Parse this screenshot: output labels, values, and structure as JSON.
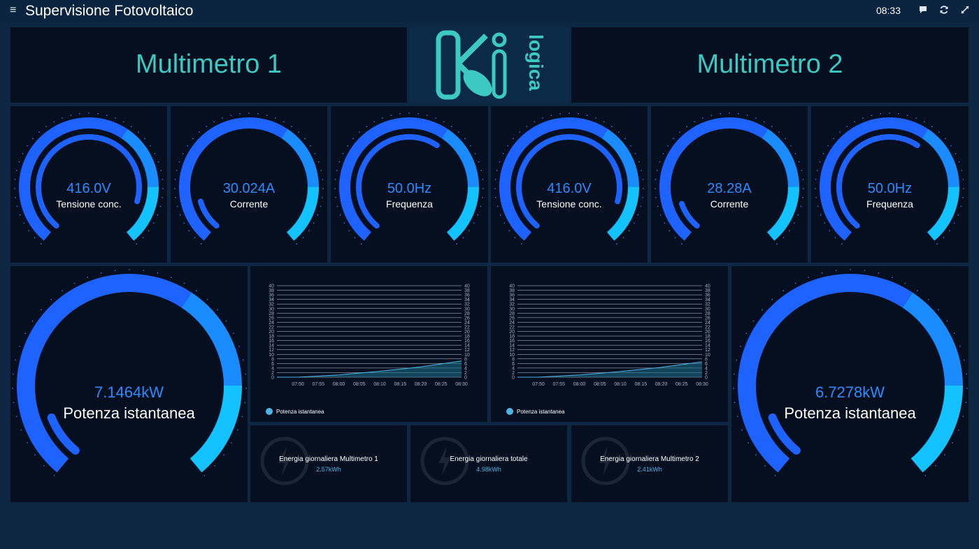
{
  "app": {
    "title": "Supervisione Fotovoltaico",
    "clock": "08:33",
    "icons": [
      "menu-icon",
      "chat-icon",
      "refresh-icon",
      "fullscreen-icon"
    ]
  },
  "headers": {
    "left": "Multimetro 1",
    "right": "Multimetro 2",
    "logo": {
      "word_big": "Ki",
      "word_small": "logica"
    }
  },
  "gauges": [
    {
      "value": "416.0V",
      "label": "Tensione conc.",
      "fill": 0.88
    },
    {
      "value": "30.024A",
      "label": "Corrente",
      "fill": 0.12
    },
    {
      "value": "50.0Hz",
      "label": "Frequenza",
      "fill": 0.62
    },
    {
      "value": "416.0V",
      "label": "Tensione conc.",
      "fill": 0.88
    },
    {
      "value": "28.28A",
      "label": "Corrente",
      "fill": 0.11
    },
    {
      "value": "50.0Hz",
      "label": "Frequenza",
      "fill": 0.62
    }
  ],
  "power": {
    "left": {
      "value": "7.1464kW",
      "label": "Potenza istantanea",
      "fill": 0.1
    },
    "right": {
      "value": "6.7278kW",
      "label": "Potenza istantanea",
      "fill": 0.1
    }
  },
  "energy": [
    {
      "title": "Energia giornaliera Multimetro 1",
      "value": "2.57kWh"
    },
    {
      "title": "Energia giornaliera totale",
      "value": "4.98kWh"
    },
    {
      "title": "Energia giornaliera Multimetro 2",
      "value": "2.41kWh"
    }
  ],
  "colors": {
    "accent": "#3cc9c4",
    "gauge_dark": "#1e63ff",
    "gauge_light": "#14c2ff",
    "panel": "#050f1f",
    "background": "#0d2743"
  },
  "chart_data": [
    {
      "type": "area",
      "x": [
        "07:50",
        "07:55",
        "08:00",
        "08:05",
        "08:10",
        "08:15",
        "08:20",
        "08:25",
        "08:30"
      ],
      "series": [
        {
          "name": "Potenza istantanea",
          "values": [
            0.0,
            0.5,
            1.0,
            1.8,
            2.6,
            3.5,
            4.5,
            5.8,
            7.1
          ]
        }
      ],
      "ylim": [
        0,
        40
      ],
      "yticks": [
        "0",
        "2",
        "4",
        "6",
        "8",
        "10",
        "12",
        "14",
        "16",
        "18",
        "20",
        "22",
        "24",
        "26",
        "28",
        "30",
        "32",
        "34",
        "36",
        "38",
        "40"
      ],
      "grid": true,
      "legend": "bottom-left"
    },
    {
      "type": "area",
      "x": [
        "07:50",
        "07:55",
        "08:00",
        "08:05",
        "08:10",
        "08:15",
        "08:20",
        "08:25",
        "08:30"
      ],
      "series": [
        {
          "name": "Potenza istantanea",
          "values": [
            0.0,
            0.5,
            1.0,
            1.7,
            2.5,
            3.4,
            4.3,
            5.5,
            6.7
          ]
        }
      ],
      "ylim": [
        0,
        40
      ],
      "yticks": [
        "0",
        "2",
        "4",
        "6",
        "8",
        "10",
        "12",
        "14",
        "16",
        "18",
        "20",
        "22",
        "24",
        "26",
        "28",
        "30",
        "32",
        "34",
        "36",
        "38",
        "40"
      ],
      "grid": true,
      "legend": "bottom-left"
    }
  ]
}
